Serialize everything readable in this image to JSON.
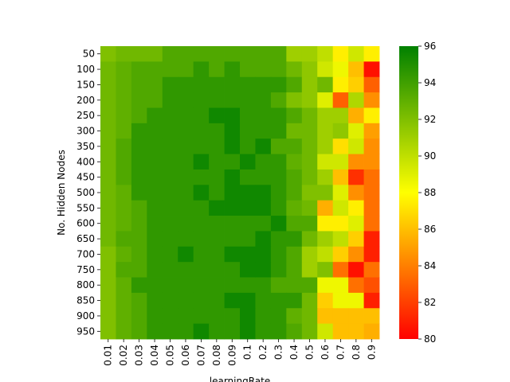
{
  "chart_data": {
    "type": "heatmap",
    "title": "",
    "xlabel": "learningRate",
    "ylabel": "No. Hidden Nodes",
    "x_categories": [
      "0.01",
      "0.02",
      "0.03",
      "0.04",
      "0.05",
      "0.06",
      "0.07",
      "0.08",
      "0.09",
      "0.1",
      "0.2",
      "0.3",
      "0.4",
      "0.5",
      "0.6",
      "0.7",
      "0.8",
      "0.9"
    ],
    "y_categories": [
      "50",
      "100",
      "150",
      "200",
      "250",
      "300",
      "350",
      "400",
      "450",
      "500",
      "550",
      "600",
      "650",
      "700",
      "750",
      "800",
      "850",
      "900",
      "950"
    ],
    "values": [
      [
        92.0,
        92.5,
        92.5,
        92.5,
        93.5,
        93.5,
        93.5,
        93.5,
        93.5,
        93.5,
        93.5,
        93.5,
        91.0,
        91.0,
        90.0,
        87.5,
        89.5,
        87.5
      ],
      [
        92.5,
        93.0,
        93.5,
        93.5,
        93.5,
        93.5,
        94.5,
        93.5,
        94.5,
        93.5,
        93.5,
        93.5,
        92.5,
        91.5,
        89.5,
        88.5,
        86.0,
        80.5
      ],
      [
        92.5,
        93.0,
        93.5,
        93.5,
        94.5,
        94.5,
        94.5,
        94.5,
        94.5,
        94.5,
        94.5,
        94.5,
        93.5,
        91.5,
        92.5,
        87.5,
        86.5,
        83.0
      ],
      [
        92.5,
        93.0,
        93.5,
        93.5,
        94.5,
        94.5,
        94.5,
        94.5,
        94.5,
        94.5,
        94.5,
        93.5,
        92.0,
        91.5,
        89.0,
        83.0,
        90.5,
        84.5
      ],
      [
        92.5,
        93.0,
        93.5,
        94.5,
        94.5,
        94.5,
        94.5,
        95.5,
        95.5,
        94.5,
        94.5,
        94.5,
        93.5,
        92.5,
        91.0,
        91.0,
        85.5,
        87.5
      ],
      [
        92.5,
        93.0,
        94.5,
        94.5,
        94.5,
        94.5,
        94.5,
        94.5,
        95.5,
        94.5,
        94.5,
        94.5,
        92.5,
        92.5,
        91.0,
        91.5,
        89.0,
        85.0
      ],
      [
        92.5,
        93.5,
        94.5,
        94.5,
        94.5,
        94.5,
        94.5,
        94.5,
        95.5,
        94.5,
        95.5,
        93.5,
        93.5,
        92.5,
        91.0,
        87.0,
        89.5,
        84.5
      ],
      [
        92.5,
        93.5,
        94.5,
        94.5,
        94.5,
        94.5,
        95.5,
        94.5,
        94.5,
        95.5,
        94.5,
        94.5,
        93.0,
        92.5,
        89.5,
        89.5,
        84.5,
        84.5
      ],
      [
        92.5,
        93.5,
        94.5,
        94.5,
        94.5,
        94.5,
        94.5,
        94.5,
        95.5,
        94.5,
        94.5,
        94.5,
        93.5,
        92.5,
        91.0,
        86.0,
        81.5,
        83.5
      ],
      [
        92.5,
        93.0,
        94.5,
        94.5,
        94.5,
        94.5,
        95.5,
        94.5,
        95.5,
        95.5,
        95.5,
        94.5,
        93.5,
        92.0,
        92.0,
        89.0,
        84.5,
        83.5
      ],
      [
        92.5,
        93.0,
        93.5,
        94.5,
        94.5,
        94.5,
        94.5,
        95.5,
        95.5,
        95.5,
        95.5,
        94.5,
        93.0,
        92.5,
        85.5,
        89.5,
        87.5,
        83.5
      ],
      [
        92.5,
        93.0,
        93.5,
        94.5,
        94.5,
        94.5,
        94.5,
        94.5,
        94.5,
        94.5,
        94.5,
        95.5,
        93.5,
        93.5,
        87.5,
        87.5,
        89.0,
        83.5
      ],
      [
        92.5,
        93.5,
        93.5,
        94.5,
        94.5,
        94.5,
        94.5,
        94.5,
        94.5,
        94.5,
        95.5,
        94.5,
        94.5,
        92.5,
        91.0,
        90.0,
        86.5,
        81.0
      ],
      [
        92.0,
        93.0,
        93.5,
        94.5,
        94.5,
        95.5,
        94.5,
        94.5,
        95.5,
        95.5,
        95.5,
        94.5,
        93.5,
        91.0,
        90.0,
        86.5,
        84.5,
        81.0
      ],
      [
        92.0,
        93.5,
        93.5,
        94.5,
        94.5,
        94.5,
        94.5,
        94.5,
        94.5,
        95.5,
        95.5,
        94.5,
        93.5,
        91.0,
        92.0,
        83.5,
        80.5,
        83.5
      ],
      [
        92.0,
        93.0,
        94.5,
        94.5,
        94.5,
        94.5,
        94.5,
        94.5,
        94.5,
        94.5,
        94.5,
        93.5,
        93.5,
        93.5,
        88.5,
        88.5,
        83.5,
        82.5
      ],
      [
        92.0,
        93.0,
        93.5,
        94.5,
        94.5,
        94.5,
        94.5,
        94.5,
        95.5,
        95.5,
        94.5,
        94.5,
        94.5,
        92.5,
        86.5,
        88.5,
        88.5,
        81.0
      ],
      [
        92.0,
        93.0,
        93.5,
        94.5,
        94.5,
        94.5,
        94.5,
        94.5,
        94.5,
        95.5,
        94.5,
        94.5,
        93.0,
        92.5,
        86.0,
        86.0,
        86.0,
        86.0
      ],
      [
        92.0,
        93.0,
        93.5,
        94.5,
        94.5,
        94.5,
        95.5,
        94.5,
        94.5,
        95.5,
        94.5,
        94.5,
        93.5,
        92.5,
        89.5,
        86.0,
        86.0,
        85.5
      ]
    ],
    "colorbar": {
      "min": 80,
      "max": 96,
      "ticks": [
        "80",
        "82",
        "84",
        "86",
        "88",
        "90",
        "92",
        "94",
        "96"
      ]
    },
    "colors": {
      "low": "#ff0000",
      "mid": "#ffff00",
      "high": "#008000"
    },
    "grid": false,
    "legend": "colorbar-right"
  }
}
